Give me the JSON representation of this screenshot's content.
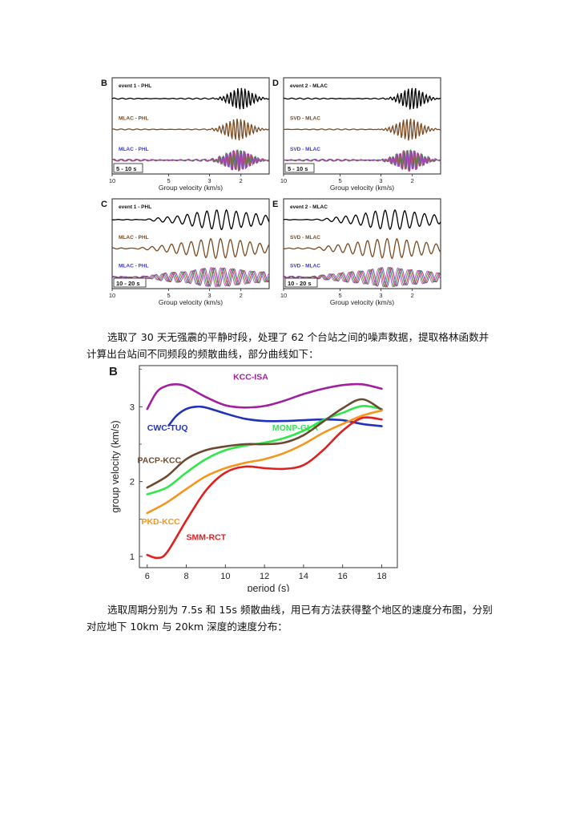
{
  "waveform_figure": {
    "panels": [
      {
        "letter": "B",
        "labels": [
          "event 1 - PHL",
          "MLAC - PHL",
          "MLAC - PHL"
        ],
        "band": "5 - 10 s"
      },
      {
        "letter": "D",
        "labels": [
          "event 2 - MLAC",
          "SVD - MLAC",
          "SVD - MLAC"
        ],
        "band": "5 - 10 s"
      },
      {
        "letter": "C",
        "labels": [
          "event 1 - PHL",
          "MLAC - PHL",
          "MLAC - PHL"
        ],
        "band": "10 - 20 s"
      },
      {
        "letter": "E",
        "labels": [
          "event 2 - MLAC",
          "SVD - MLAC",
          "SVD - MLAC"
        ],
        "band": "10 - 20 s"
      }
    ],
    "axis_ticks": [
      "10",
      "5",
      "3",
      "2"
    ],
    "axis_label": "Group velocity (km/s)",
    "trace_colors": {
      "event": "#000000",
      "ambient": "#7a4a22",
      "mixed": [
        "#3b3ccf",
        "#d02a2a",
        "#1f9e3a",
        "#c03cc0"
      ]
    }
  },
  "paragraph_1": "选取了 30 天无强震的平静时段，处理了 62 个台站之间的噪声数据，提取格林函数并计算出台站间不同频段的频散曲线，部分曲线如下：",
  "chart_data": {
    "type": "line",
    "panel_letter": "B",
    "title": "",
    "xlabel": "period (s)",
    "ylabel": "group velocity (km/s)",
    "xlim": [
      5.6,
      18.8
    ],
    "ylim": [
      0.85,
      3.55
    ],
    "xticks": [
      6,
      8,
      10,
      12,
      14,
      16,
      18
    ],
    "yticks": [
      1,
      2,
      3
    ],
    "series": [
      {
        "name": "KCC-ISA",
        "color": "#a020a0",
        "x": [
          6,
          6.5,
          7,
          7.5,
          8,
          9,
          10,
          11,
          12,
          13,
          14,
          15,
          16,
          17,
          18
        ],
        "y": [
          2.97,
          3.2,
          3.28,
          3.3,
          3.27,
          3.13,
          3.02,
          2.99,
          3.01,
          3.08,
          3.17,
          3.24,
          3.29,
          3.3,
          3.24
        ]
      },
      {
        "name": "CWC-TUQ",
        "color": "#2233bb",
        "x": [
          7.1,
          7.5,
          8,
          8.5,
          9,
          10,
          11,
          12,
          13,
          14,
          15,
          16,
          17,
          18
        ],
        "y": [
          2.75,
          2.88,
          2.97,
          3.0,
          2.99,
          2.91,
          2.84,
          2.81,
          2.81,
          2.82,
          2.83,
          2.82,
          2.77,
          2.74
        ]
      },
      {
        "name": "MONP-GLA",
        "color": "#2ee84a",
        "x": [
          6,
          7,
          8,
          9,
          10,
          11,
          12,
          13,
          14,
          15,
          16,
          17,
          18
        ],
        "y": [
          1.83,
          1.92,
          2.12,
          2.3,
          2.42,
          2.48,
          2.52,
          2.58,
          2.68,
          2.82,
          2.92,
          3.01,
          2.97
        ]
      },
      {
        "name": "PACP-KCC",
        "color": "#6b4a30",
        "x": [
          6,
          7,
          8,
          9,
          10,
          11,
          12,
          13,
          14,
          15,
          16,
          17,
          18
        ],
        "y": [
          1.92,
          2.07,
          2.3,
          2.42,
          2.47,
          2.5,
          2.5,
          2.52,
          2.62,
          2.8,
          2.98,
          3.1,
          2.96
        ]
      },
      {
        "name": "PKD-KCC",
        "color": "#f4961e",
        "x": [
          6,
          7,
          8,
          9,
          10,
          11,
          12,
          13,
          14,
          15,
          16,
          17,
          18
        ],
        "y": [
          1.58,
          1.72,
          1.9,
          2.07,
          2.18,
          2.25,
          2.3,
          2.38,
          2.5,
          2.65,
          2.77,
          2.88,
          2.95
        ]
      },
      {
        "name": "SMM-RCT",
        "color": "#e01f1f",
        "x": [
          6,
          6.5,
          7,
          8,
          9,
          10,
          11,
          12,
          13,
          14,
          15,
          16,
          17,
          18
        ],
        "y": [
          1.02,
          0.98,
          1.05,
          1.48,
          1.88,
          2.12,
          2.2,
          2.18,
          2.17,
          2.22,
          2.42,
          2.68,
          2.85,
          2.83
        ]
      }
    ]
  },
  "paragraph_2": "选取周期分别为 7.5s 和 15s 频散曲线，用已有方法获得整个地区的速度分布图，分别对应地下 10km 与 20km 深度的速度分布："
}
